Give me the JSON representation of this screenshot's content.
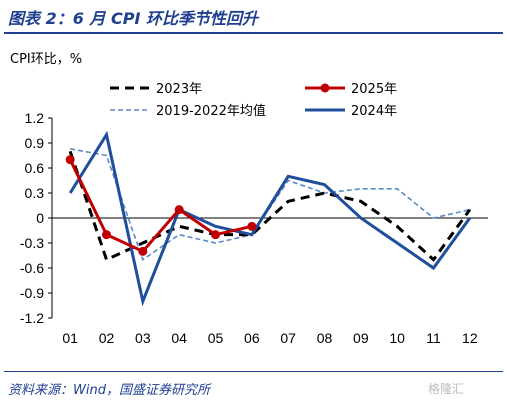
{
  "header": {
    "title": "图表 2：6 月 CPI 环比季节性回升",
    "source": "资料来源：Wind，国盛证券研究所",
    "watermark": "格隆汇"
  },
  "colors": {
    "title_blue": "#1f3f8f",
    "s2023": "#000000",
    "s2025": "#c00000",
    "s2019_2022": "#5b8bc5",
    "s2024": "#1f4e9c"
  },
  "chart_data": {
    "type": "line",
    "unit_label": "CPI环比，%",
    "categories": [
      "01",
      "02",
      "03",
      "04",
      "05",
      "06",
      "07",
      "08",
      "09",
      "10",
      "11",
      "12"
    ],
    "ylim": [
      -1.2,
      1.2
    ],
    "yticks": [
      "1.2",
      "0.9",
      "0.6",
      "0.3",
      "0",
      "-0.3",
      "-0.6",
      "-0.9",
      "-1.2"
    ],
    "grid": false,
    "legend_placement": "top",
    "series": [
      {
        "name": "2023年",
        "key": "s2023",
        "style": "dashed-thick",
        "color": "#000000",
        "values": [
          0.8,
          -0.5,
          -0.3,
          -0.1,
          -0.2,
          -0.2,
          0.2,
          0.3,
          0.2,
          -0.1,
          -0.5,
          0.1
        ]
      },
      {
        "name": "2025年",
        "key": "s2025",
        "style": "solid-marker",
        "color": "#c00000",
        "values": [
          0.7,
          -0.2,
          -0.4,
          0.1,
          -0.2,
          -0.1,
          null,
          null,
          null,
          null,
          null,
          null
        ]
      },
      {
        "name": "2019-2022年均值",
        "key": "s2019_2022",
        "style": "dashed-thin",
        "color": "#5b8bc5",
        "values": [
          0.83,
          0.75,
          -0.5,
          -0.2,
          -0.3,
          -0.2,
          0.45,
          0.3,
          0.35,
          0.35,
          0.0,
          0.1
        ]
      },
      {
        "name": "2024年",
        "key": "s2024",
        "style": "solid",
        "color": "#1f4e9c",
        "values": [
          0.3,
          1.0,
          -1.0,
          0.1,
          -0.1,
          -0.2,
          0.5,
          0.4,
          0.0,
          -0.3,
          -0.6,
          0.0
        ]
      }
    ]
  }
}
